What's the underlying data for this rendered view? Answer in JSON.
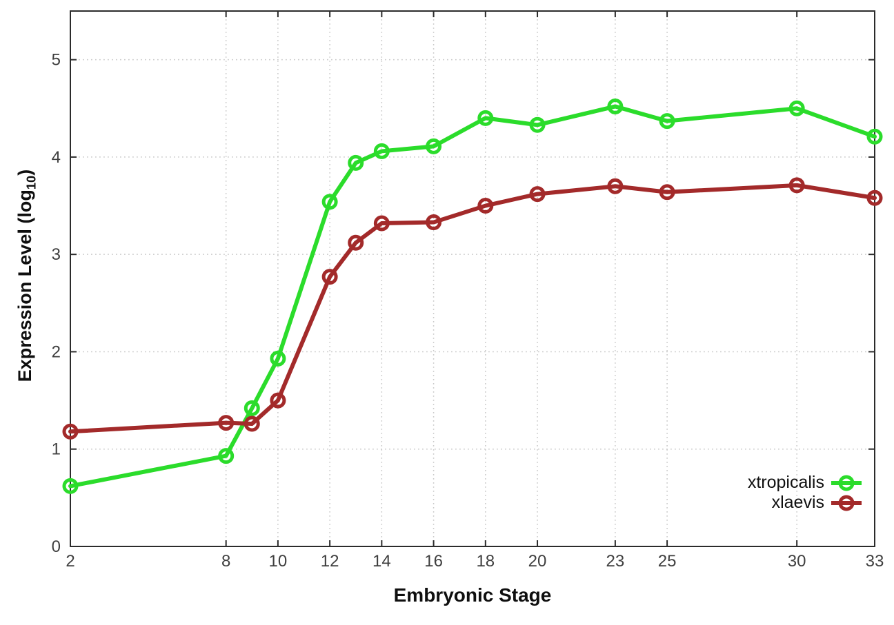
{
  "chart_data": {
    "type": "line",
    "title": "",
    "xlabel": "Embryonic Stage",
    "ylabel": "Expression Level (log10)",
    "ylabel_rich": {
      "pre": "Expression Level (log",
      "sub": "10",
      "post": ")"
    },
    "xlim": [
      2,
      33
    ],
    "ylim": [
      0,
      5.5
    ],
    "x_ticks": [
      2,
      8,
      10,
      12,
      14,
      16,
      18,
      20,
      23,
      25,
      30,
      33
    ],
    "y_ticks": [
      0,
      1,
      2,
      3,
      4,
      5
    ],
    "grid": {
      "show": true,
      "style": "dotted",
      "color": "#c9c9c9"
    },
    "axis_color": "#2b2b2b",
    "tick_label_color": "#3f3f3f",
    "legend_position": "inside-bottom-right",
    "x": [
      2,
      8,
      9,
      10,
      12,
      13,
      14,
      16,
      18,
      20,
      23,
      25,
      30,
      33
    ],
    "series": [
      {
        "name": "xtropicalis",
        "color": "#2bdc2b",
        "marker": "open-circle",
        "values": [
          0.62,
          0.93,
          1.42,
          1.93,
          3.54,
          3.94,
          4.06,
          4.11,
          4.4,
          4.33,
          4.52,
          4.37,
          4.5,
          4.21
        ]
      },
      {
        "name": "xlaevis",
        "color": "#a32a2a",
        "marker": "open-circle",
        "values": [
          1.18,
          1.27,
          1.26,
          1.5,
          2.77,
          3.12,
          3.32,
          3.33,
          3.5,
          3.62,
          3.7,
          3.64,
          3.71,
          3.58
        ]
      }
    ]
  }
}
